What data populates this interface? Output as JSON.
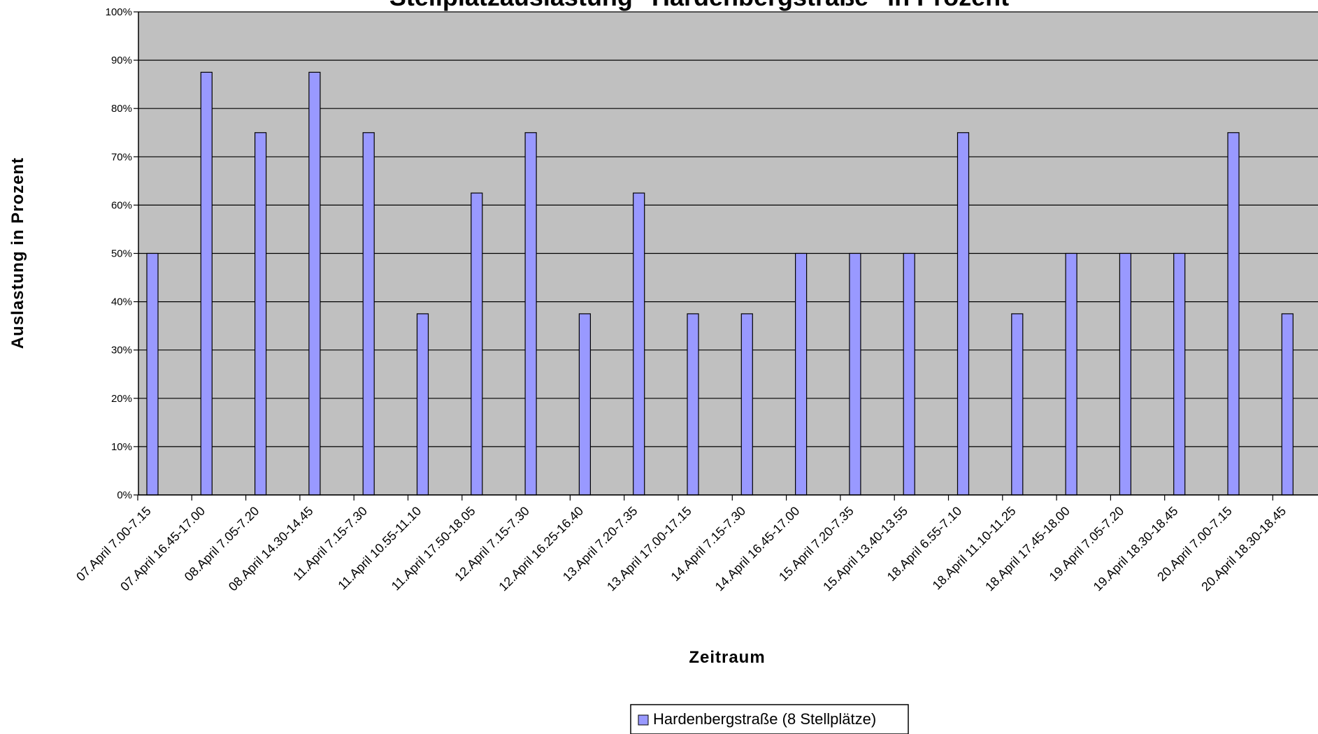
{
  "chart_data": {
    "type": "bar",
    "title": "Stellplatzauslastung \"Hardenbergstraße\" in Prozent",
    "xlabel": "Zeitraum",
    "ylabel": "Auslastung in Prozent",
    "ylim": [
      0,
      100
    ],
    "yticks": [
      "0%",
      "10%",
      "20%",
      "30%",
      "40%",
      "50%",
      "60%",
      "70%",
      "80%",
      "90%",
      "100%"
    ],
    "grid": true,
    "legend_position": "bottom",
    "categories": [
      "07.April 7.00-7.15",
      "07.April 16.45-17.00",
      "08.April 7.05-7.20",
      "08.April 14.30-14.45",
      "11.April 7.15-7.30",
      "11.April 10.55-11.10",
      "11.April 17.50-18.05",
      "12.April 7.15-7.30",
      "12.April 16.25-16.40",
      "13.April 7.20-7.35",
      "13.April 17.00-17.15",
      "14.April 7.15-7.30",
      "14.April 16.45-17.00",
      "15.April 7.20-7.35",
      "15.April 13.40-13.55",
      "18.April 6.55-7.10",
      "18.April 11.10-11.25",
      "18.April 17.45-18.00",
      "19.April 7.05-7.20",
      "19.April 18.30-18.45",
      "20.April 7.00-7.15",
      "20.April 18.30-18.45"
    ],
    "series": [
      {
        "name": "Hardenbergstraße (8 Stellplätze)",
        "color": "#9999ff",
        "values": [
          50,
          87.5,
          75,
          87.5,
          75,
          37.5,
          62.5,
          75,
          37.5,
          62.5,
          37.5,
          37.5,
          50,
          50,
          50,
          75,
          37.5,
          50,
          50,
          50,
          75,
          37.5
        ]
      }
    ],
    "colors": {
      "plot_background": "#c0c0c0",
      "gridline": "#000000",
      "bar_fill": "#9999ff",
      "bar_stroke": "#000000"
    }
  }
}
